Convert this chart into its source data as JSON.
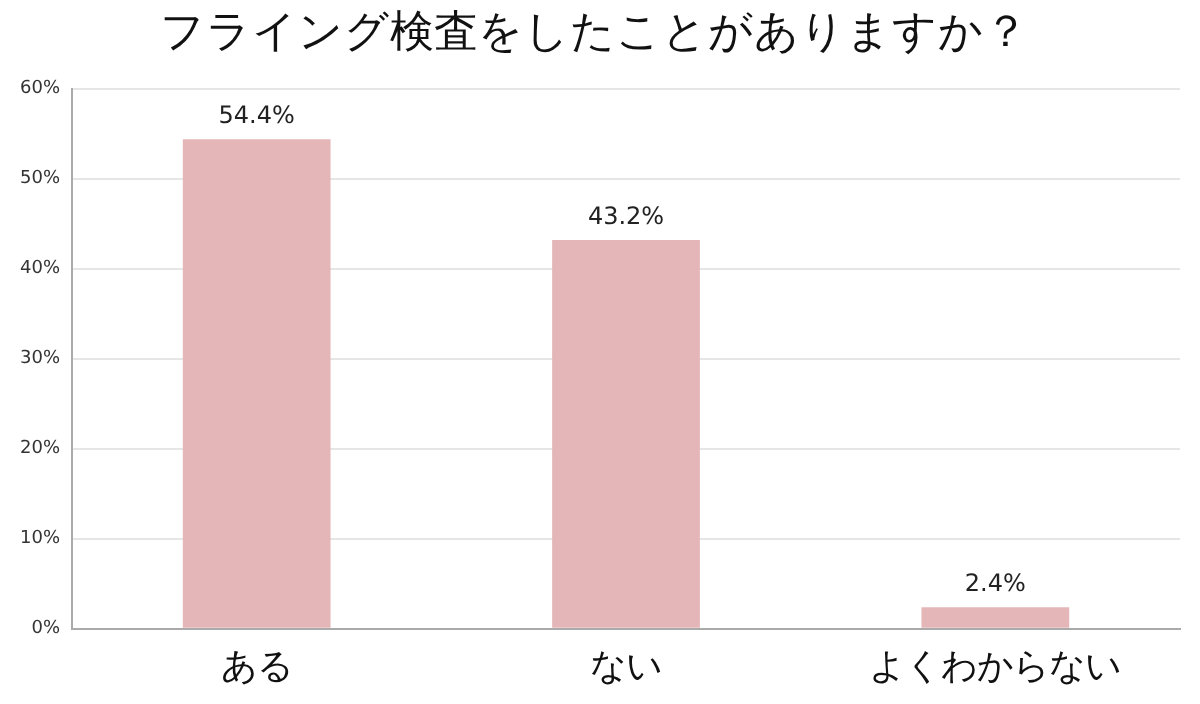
{
  "chart_data": {
    "type": "bar",
    "title": "フライング検査をしたことがありますか？",
    "categories": [
      "ある",
      "ない",
      "よくわからない"
    ],
    "values": [
      54.4,
      43.2,
      2.4
    ],
    "value_labels": [
      "54.4%",
      "43.2%",
      "2.4%"
    ],
    "color": "#e4b6b7",
    "ylim": [
      0,
      60
    ],
    "yticks": [
      {
        "value": 0,
        "label": "0%"
      },
      {
        "value": 10,
        "label": "10%"
      },
      {
        "value": 20,
        "label": "20%"
      },
      {
        "value": 30,
        "label": "30%"
      },
      {
        "value": 40,
        "label": "40%"
      },
      {
        "value": 50,
        "label": "50%"
      },
      {
        "value": 60,
        "label": "60%"
      }
    ],
    "grid": "y"
  }
}
